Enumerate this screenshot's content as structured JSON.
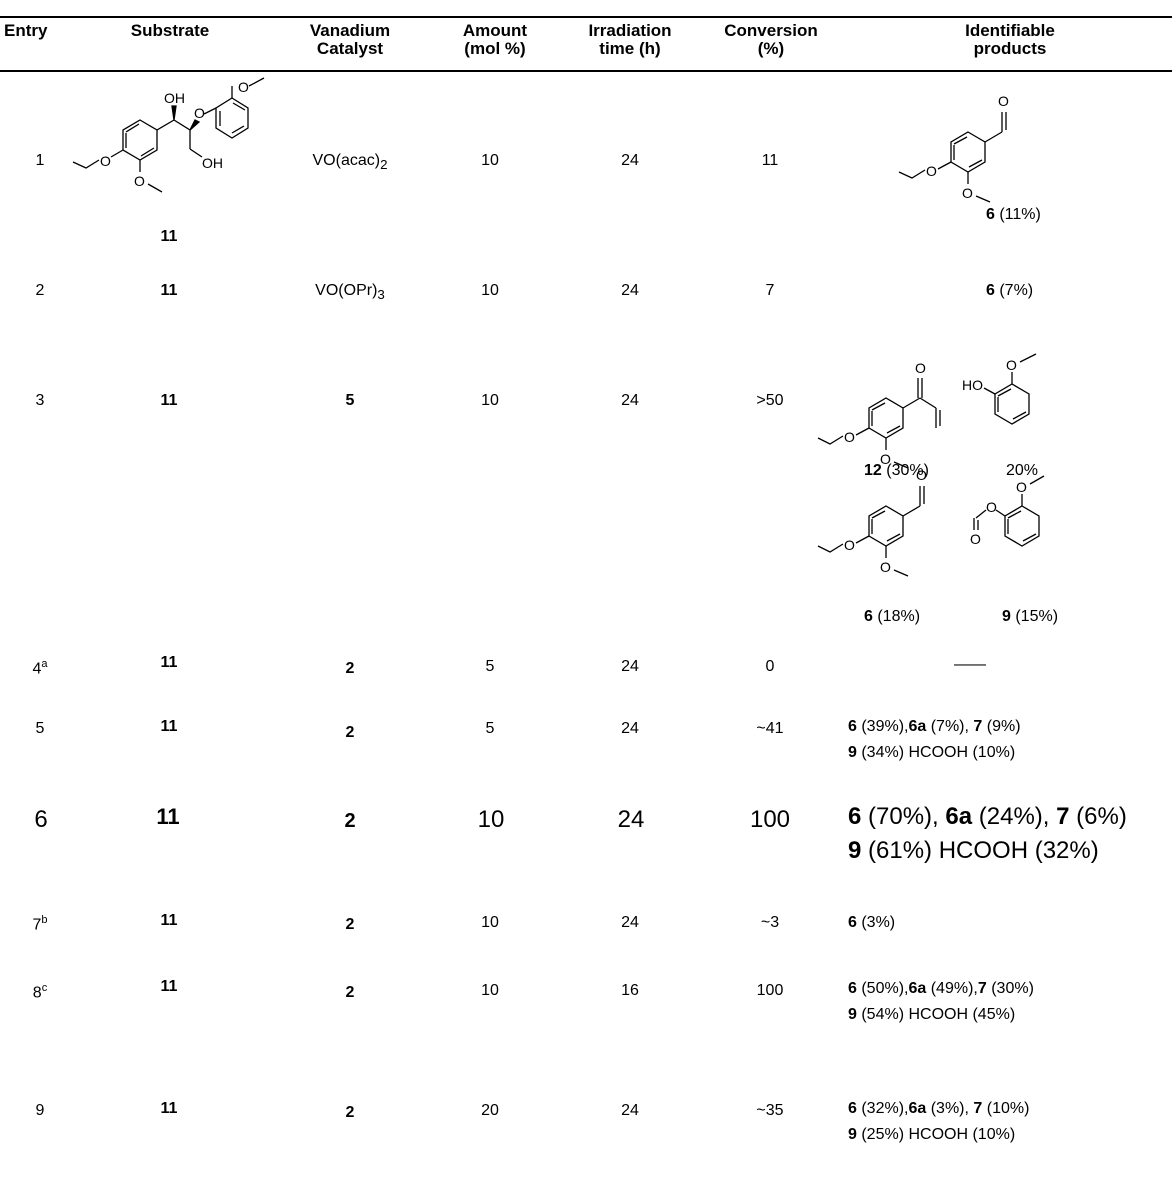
{
  "headers": {
    "entry": "Entry",
    "substrate": "Substrate",
    "catalyst_l1": "Vanadium",
    "catalyst_l2": "Catalyst",
    "amount_l1": "Amount",
    "amount_l2": "(mol %)",
    "time_l1": "Irradiation",
    "time_l2": "time (h)",
    "conversion_l1": "Conversion",
    "conversion_l2": "(%)",
    "products_l1": "Identifiable",
    "products_l2": "products"
  },
  "atoms": {
    "oh": "OH",
    "o": "O",
    "ho": "HO"
  },
  "rows": [
    {
      "entry": "1",
      "substrate": "11",
      "catalyst": "VO(acac)",
      "catalyst_sub": "2",
      "amount": "10",
      "time": "24",
      "conversion": "11",
      "product_label": "6",
      "product_pct": " (11%)"
    },
    {
      "entry": "2",
      "substrate": "11",
      "catalyst": "VO(OPr)",
      "catalyst_sub": "3",
      "amount": "10",
      "time": "24",
      "conversion": "7",
      "product_label": "6",
      "product_pct": " (7%)"
    },
    {
      "entry": "3",
      "substrate": "11",
      "catalyst": "5",
      "amount": "10",
      "time": "24",
      "conversion": ">50",
      "products": [
        {
          "label": "12",
          "pct": " (30%)"
        },
        {
          "label": "",
          "pct": "20%"
        },
        {
          "label": "6",
          "pct": " (18%)"
        },
        {
          "label": "9",
          "pct": " (15%)"
        }
      ]
    },
    {
      "entry": "4",
      "entry_sup": "a",
      "substrate": "11",
      "catalyst": "2",
      "amount": "5",
      "time": "24",
      "conversion": "0",
      "products_text": "——"
    },
    {
      "entry": "5",
      "substrate": "11",
      "catalyst": "2",
      "amount": "5",
      "time": "24",
      "conversion": "~41",
      "line1": [
        {
          "b": "6",
          "t": " (39%),"
        },
        {
          "b": "6a",
          "t": " (7%), "
        },
        {
          "b": "7",
          "t": " (9%)"
        }
      ],
      "line2": [
        {
          "b": "9",
          "t": " (34%)  HCOOH (10%)"
        }
      ]
    },
    {
      "entry": "6",
      "substrate": "11",
      "catalyst": "2",
      "amount": "10",
      "time": "24",
      "conversion": "100",
      "line1": [
        {
          "b": "6",
          "t": " (70%), "
        },
        {
          "b": "6a",
          "t": " (24%), "
        },
        {
          "b": "7",
          "t": " (6%)"
        }
      ],
      "line2": [
        {
          "b": "9",
          "t": " (61%)  HCOOH (32%)"
        }
      ]
    },
    {
      "entry": "7",
      "entry_sup": "b",
      "substrate": "11",
      "catalyst": "2",
      "amount": "10",
      "time": "24",
      "conversion": "~3",
      "line1": [
        {
          "b": "6",
          "t": " (3%)"
        }
      ]
    },
    {
      "entry": "8",
      "entry_sup": "c",
      "substrate": "11",
      "catalyst": "2",
      "amount": "10",
      "time": "16",
      "conversion": "100",
      "line1": [
        {
          "b": "6",
          "t": " (50%),"
        },
        {
          "b": "6a",
          "t": " (49%),"
        },
        {
          "b": "7",
          "t": " (30%)"
        }
      ],
      "line2": [
        {
          "b": "9",
          "t": " (54%)   HCOOH (45%)"
        }
      ]
    },
    {
      "entry": "9",
      "substrate": "11",
      "catalyst": "2",
      "amount": "20",
      "time": "24",
      "conversion": "~35",
      "line1": [
        {
          "b": "6",
          "t": " (32%),"
        },
        {
          "b": "6a",
          "t": " (3%),  "
        },
        {
          "b": "7",
          "t": " (10%)"
        }
      ],
      "line2": [
        {
          "b": "9",
          "t": " (25%)   HCOOH (10%)"
        }
      ]
    }
  ]
}
